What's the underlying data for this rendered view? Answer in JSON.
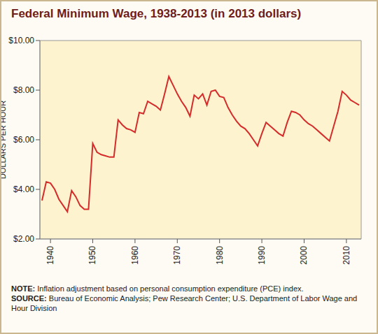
{
  "chart_data": {
    "type": "line",
    "title": "Federal Minimum Wage, 1938-2013 (in 2013 dollars)",
    "y_label": "DOLLARS PER HOUR",
    "notes": [
      "NOTE: Inflation adjustment based on personal consumption expenditure (PCE) index.",
      "SOURCE: Bureau of Economic Analysis; Pew Research Center; U.S. Department of Labor Wage and Hour Division"
    ],
    "x": [
      1938,
      1939,
      1940,
      1941,
      1942,
      1943,
      1944,
      1945,
      1946,
      1947,
      1948,
      1949,
      1950,
      1951,
      1952,
      1953,
      1954,
      1955,
      1956,
      1957,
      1958,
      1959,
      1960,
      1961,
      1962,
      1963,
      1964,
      1965,
      1966,
      1967,
      1968,
      1969,
      1970,
      1971,
      1972,
      1973,
      1974,
      1975,
      1976,
      1977,
      1978,
      1979,
      1980,
      1981,
      1982,
      1983,
      1984,
      1985,
      1986,
      1987,
      1988,
      1989,
      1990,
      1991,
      1992,
      1993,
      1994,
      1995,
      1996,
      1997,
      1998,
      1999,
      2000,
      2001,
      2002,
      2003,
      2004,
      2005,
      2006,
      2007,
      2008,
      2009,
      2010,
      2011,
      2012,
      2013
    ],
    "values": [
      3.55,
      4.3,
      4.25,
      4.0,
      3.6,
      3.35,
      3.1,
      3.95,
      3.7,
      3.35,
      3.2,
      3.2,
      5.85,
      5.5,
      5.4,
      5.35,
      5.3,
      5.3,
      6.8,
      6.6,
      6.45,
      6.4,
      6.3,
      7.1,
      7.05,
      7.55,
      7.45,
      7.35,
      7.2,
      7.85,
      8.55,
      8.2,
      7.85,
      7.55,
      7.3,
      6.95,
      7.8,
      7.65,
      7.85,
      7.4,
      7.95,
      8.0,
      7.75,
      7.7,
      7.3,
      7.0,
      6.75,
      6.55,
      6.45,
      6.25,
      6.0,
      5.75,
      6.25,
      6.7,
      6.55,
      6.4,
      6.25,
      6.15,
      6.7,
      7.15,
      7.1,
      7.0,
      6.8,
      6.65,
      6.55,
      6.4,
      6.25,
      6.1,
      5.95,
      6.55,
      7.15,
      7.95,
      7.8,
      7.6,
      7.5,
      7.4
    ],
    "color": "#d42b2b",
    "xlim": [
      1937.5,
      2013.5
    ],
    "xticks": [
      1940,
      1950,
      1960,
      1970,
      1980,
      1990,
      2000,
      2010
    ],
    "ylim": [
      2,
      10
    ],
    "yticks": [
      {
        "value": 2,
        "label": "$2.00"
      },
      {
        "value": 4,
        "label": "$4.00"
      },
      {
        "value": 6,
        "label": "$6.00"
      },
      {
        "value": 8,
        "label": "$8.00"
      },
      {
        "value": 10,
        "label": "$10.00"
      }
    ],
    "grid": false
  }
}
